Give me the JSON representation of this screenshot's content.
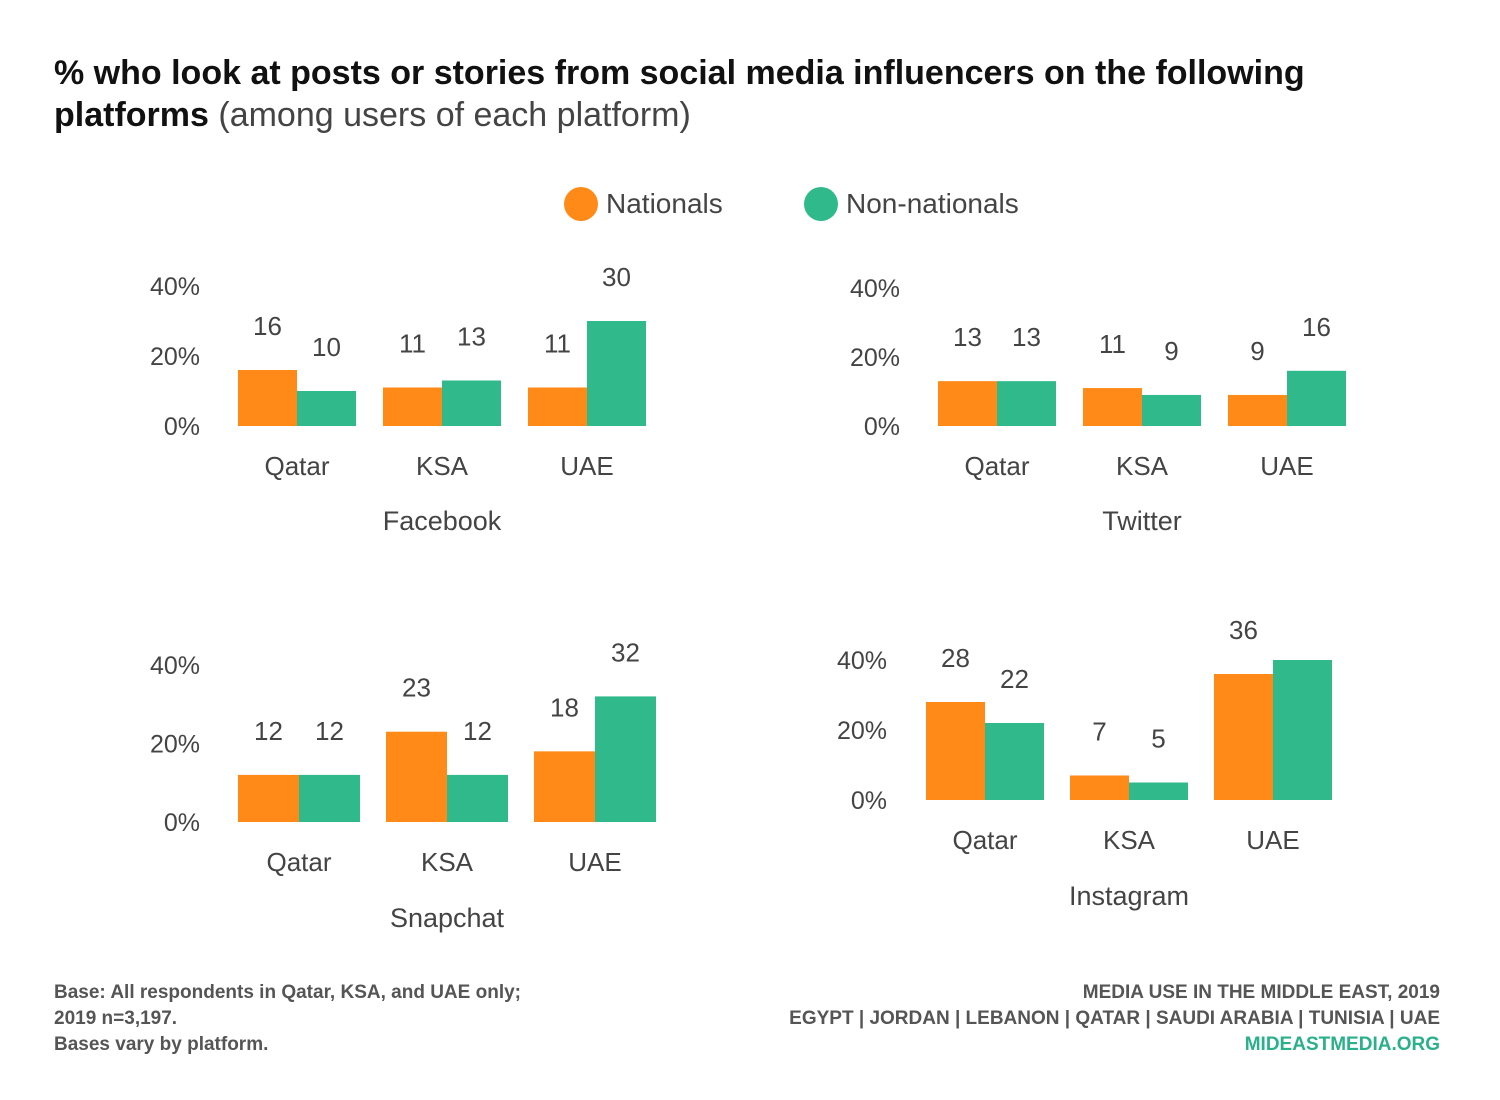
{
  "title": {
    "bold": "% who look at posts or stories from social media influencers on the following platforms",
    "light": "(among users of each platform)"
  },
  "colors": {
    "nationals": "#ff8a17",
    "non_nationals": "#30b98b"
  },
  "legend": {
    "nationals": "Nationals",
    "non_nationals": "Non-nationals"
  },
  "chart_data": [
    {
      "type": "bar",
      "title": "Facebook",
      "categories": [
        "Qatar",
        "KSA",
        "UAE"
      ],
      "series": [
        {
          "name": "Nationals",
          "values": [
            16,
            11,
            11
          ]
        },
        {
          "name": "Non-nationals",
          "values": [
            10,
            13,
            30
          ]
        }
      ],
      "yticks": [
        "0%",
        "20%",
        "40%"
      ],
      "ylim": [
        0,
        40
      ],
      "grid": false
    },
    {
      "type": "bar",
      "title": "Twitter",
      "categories": [
        "Qatar",
        "KSA",
        "UAE"
      ],
      "series": [
        {
          "name": "Nationals",
          "values": [
            13,
            11,
            9
          ]
        },
        {
          "name": "Non-nationals",
          "values": [
            13,
            9,
            16
          ]
        }
      ],
      "yticks": [
        "0%",
        "20%",
        "40%"
      ],
      "ylim": [
        0,
        40
      ],
      "grid": false
    },
    {
      "type": "bar",
      "title": "Snapchat",
      "categories": [
        "Qatar",
        "KSA",
        "UAE"
      ],
      "series": [
        {
          "name": "Nationals",
          "values": [
            12,
            23,
            18
          ]
        },
        {
          "name": "Non-nationals",
          "values": [
            12,
            12,
            32
          ]
        }
      ],
      "yticks": [
        "0%",
        "20%",
        "40%"
      ],
      "ylim": [
        0,
        40
      ],
      "grid": false
    },
    {
      "type": "bar",
      "title": "Instagram",
      "categories": [
        "Qatar",
        "KSA",
        "UAE"
      ],
      "series": [
        {
          "name": "Nationals",
          "values": [
            28,
            7,
            36
          ]
        },
        {
          "name": "Non-nationals",
          "values": [
            22,
            5,
            40
          ]
        }
      ],
      "labels": [
        [
          "28",
          "7",
          "36"
        ],
        [
          "22",
          "5",
          ""
        ]
      ],
      "yticks": [
        "0%",
        "20%",
        "40%"
      ],
      "ylim": [
        0,
        40
      ],
      "grid": false
    }
  ],
  "footer": {
    "base_line1": "Base: All respondents in Qatar, KSA, and UAE only;",
    "base_line2": "2019 n=3,197.",
    "base_line3": "Bases vary by platform.",
    "source_line1": "MEDIA USE IN THE MIDDLE EAST, 2019",
    "source_line2": "EGYPT | JORDAN | LEBANON | QATAR | SAUDI ARABIA | TUNISIA | UAE",
    "site": "MIDEASTMEDIA.ORG"
  }
}
